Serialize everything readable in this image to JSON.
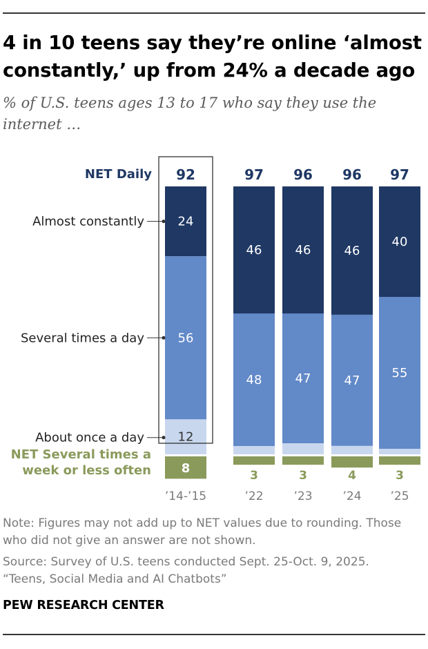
{
  "title": "4 in 10 teens say they’re online ‘almost constantly,’ up from 24% a decade ago",
  "subtitle": "% of U.S. teens ages 13 to 17 who say they use the internet …",
  "chart_data": {
    "type": "bar",
    "stacked": true,
    "categories": [
      "’14-’15",
      "’22",
      "’23",
      "’24",
      "’25"
    ],
    "net_daily_label": "NET Daily",
    "net_daily_values": [
      "92",
      "97",
      "96",
      "96",
      "97"
    ],
    "series": [
      {
        "name": "Almost constantly",
        "values": [
          24,
          46,
          46,
          46,
          40
        ],
        "labels": [
          "24",
          "46",
          "46",
          "46",
          "40"
        ],
        "color": "#1f3864"
      },
      {
        "name": "Several times a day",
        "values": [
          56,
          48,
          47,
          47,
          55
        ],
        "labels": [
          "56",
          "48",
          "47",
          "47",
          "55"
        ],
        "color": "#6289c8"
      },
      {
        "name": "About once a day",
        "values": [
          12,
          3,
          4,
          3,
          2
        ],
        "labels": [
          "12",
          "",
          "",
          "",
          ""
        ],
        "color": "#c8d7ee"
      }
    ],
    "net_weekly": {
      "name": "NET Several times a week or less often",
      "values": [
        8,
        3,
        3,
        4,
        3
      ],
      "labels": [
        "8",
        "3",
        "3",
        "4",
        "3"
      ],
      "color": "#8a9a5b"
    },
    "highlighted_category": "’14-’15"
  },
  "notes": {
    "note": "Note: Figures may not add up to NET values due to rounding. Those who did not give an answer are not shown.",
    "source_line1": "Source: Survey of U.S. teens conducted Sept. 25-Oct. 9, 2025.",
    "source_line2": "“Teens, Social Media and AI Chatbots”"
  },
  "credit": "PEW RESEARCH CENTER"
}
